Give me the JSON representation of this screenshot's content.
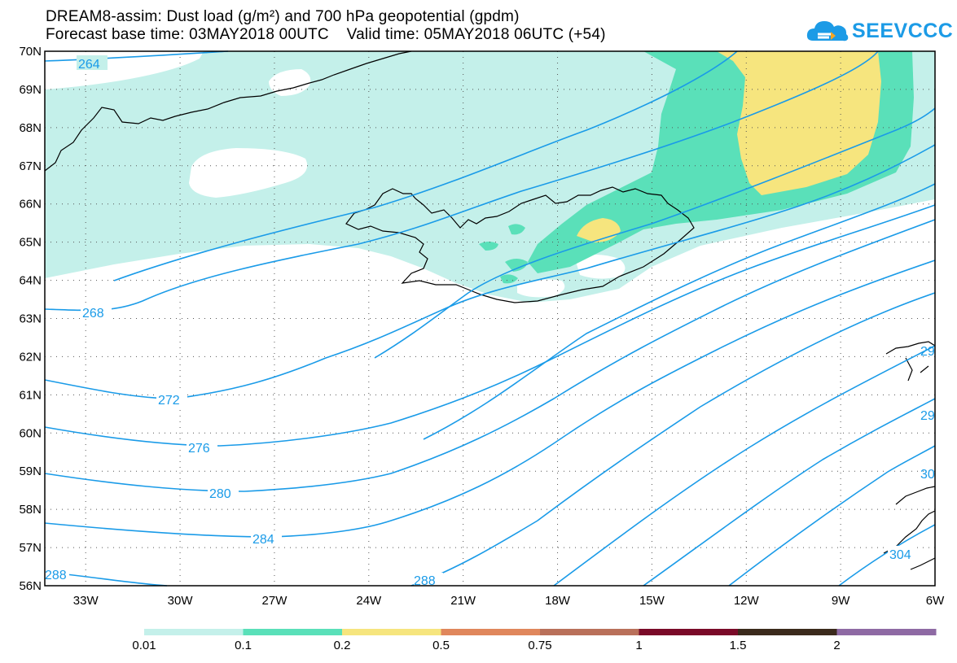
{
  "title_line1": "DREAM8-assim: Dust load (g/m²) and 700 hPa geopotential (gpdm)",
  "title_line2": "Forecast base time: 03MAY2018 00UTC    Valid time: 05MAY2018 06UTC (+54)",
  "logo_text": "SEEVCCC",
  "map": {
    "lat_labels": [
      "70N",
      "69N",
      "68N",
      "67N",
      "66N",
      "65N",
      "64N",
      "63N",
      "62N",
      "61N",
      "60N",
      "59N",
      "58N",
      "57N",
      "56N"
    ],
    "lon_labels": [
      "33W",
      "30W",
      "27W",
      "24W",
      "21W",
      "18W",
      "15W",
      "12W",
      "9W",
      "6W"
    ],
    "contour_labels": [
      "264",
      "268",
      "272",
      "276",
      "280",
      "284",
      "288",
      "288",
      "29",
      "29",
      "30",
      "304"
    ],
    "colors": {
      "dust_0_01": "#c4f0ea",
      "dust_0_1": "#5ae0b9",
      "dust_0_2": "#f6e57e",
      "contour": "#1a9be8",
      "coast": "#000000"
    }
  },
  "colorbar": {
    "labels": [
      "0.01",
      "0.1",
      "0.2",
      "0.5",
      "0.75",
      "1",
      "1.5",
      "2"
    ],
    "colors": [
      "#c4f0ea",
      "#5ae0b9",
      "#f6e57e",
      "#e0875c",
      "#b9705a",
      "#7a0a28",
      "#3b2a1c",
      "#8e6aa4"
    ]
  }
}
